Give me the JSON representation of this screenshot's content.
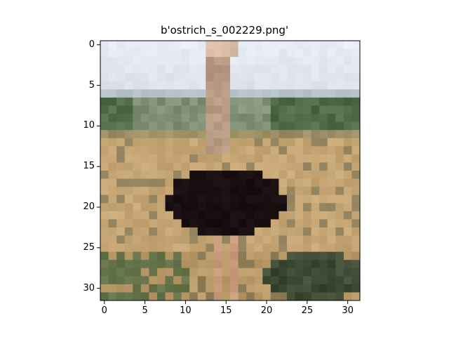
{
  "figure": {
    "title": "b'ostrich_s_002229.png'"
  },
  "chart_data": {
    "type": "heatmap",
    "title": "b'ostrich_s_002229.png'",
    "image_size": [
      32,
      32
    ],
    "x_ticks": [
      "0",
      "5",
      "10",
      "15",
      "20",
      "25",
      "30"
    ],
    "y_ticks": [
      "0",
      "5",
      "10",
      "15",
      "20",
      "25",
      "30"
    ],
    "x_tick_values": [
      0,
      5,
      10,
      15,
      20,
      25,
      30
    ],
    "y_tick_values": [
      0,
      5,
      10,
      15,
      20,
      25,
      30
    ],
    "xlim": [
      -0.5,
      31.5
    ],
    "ylim": [
      31.5,
      -0.5
    ],
    "grid": false,
    "content": "low-resolution photo of an ostrich standing in a dry grassland, green tree line on horizon, pale sky",
    "palette": {
      "sky": "#e8ecf4",
      "horizon": "#8fa3a8",
      "trees": "#4f6b48",
      "grass": "#c9a877",
      "grass_dark": "#8a7a55",
      "body": "#140a0c",
      "neck": "#b89a82",
      "bush": "#3e4a34"
    }
  }
}
